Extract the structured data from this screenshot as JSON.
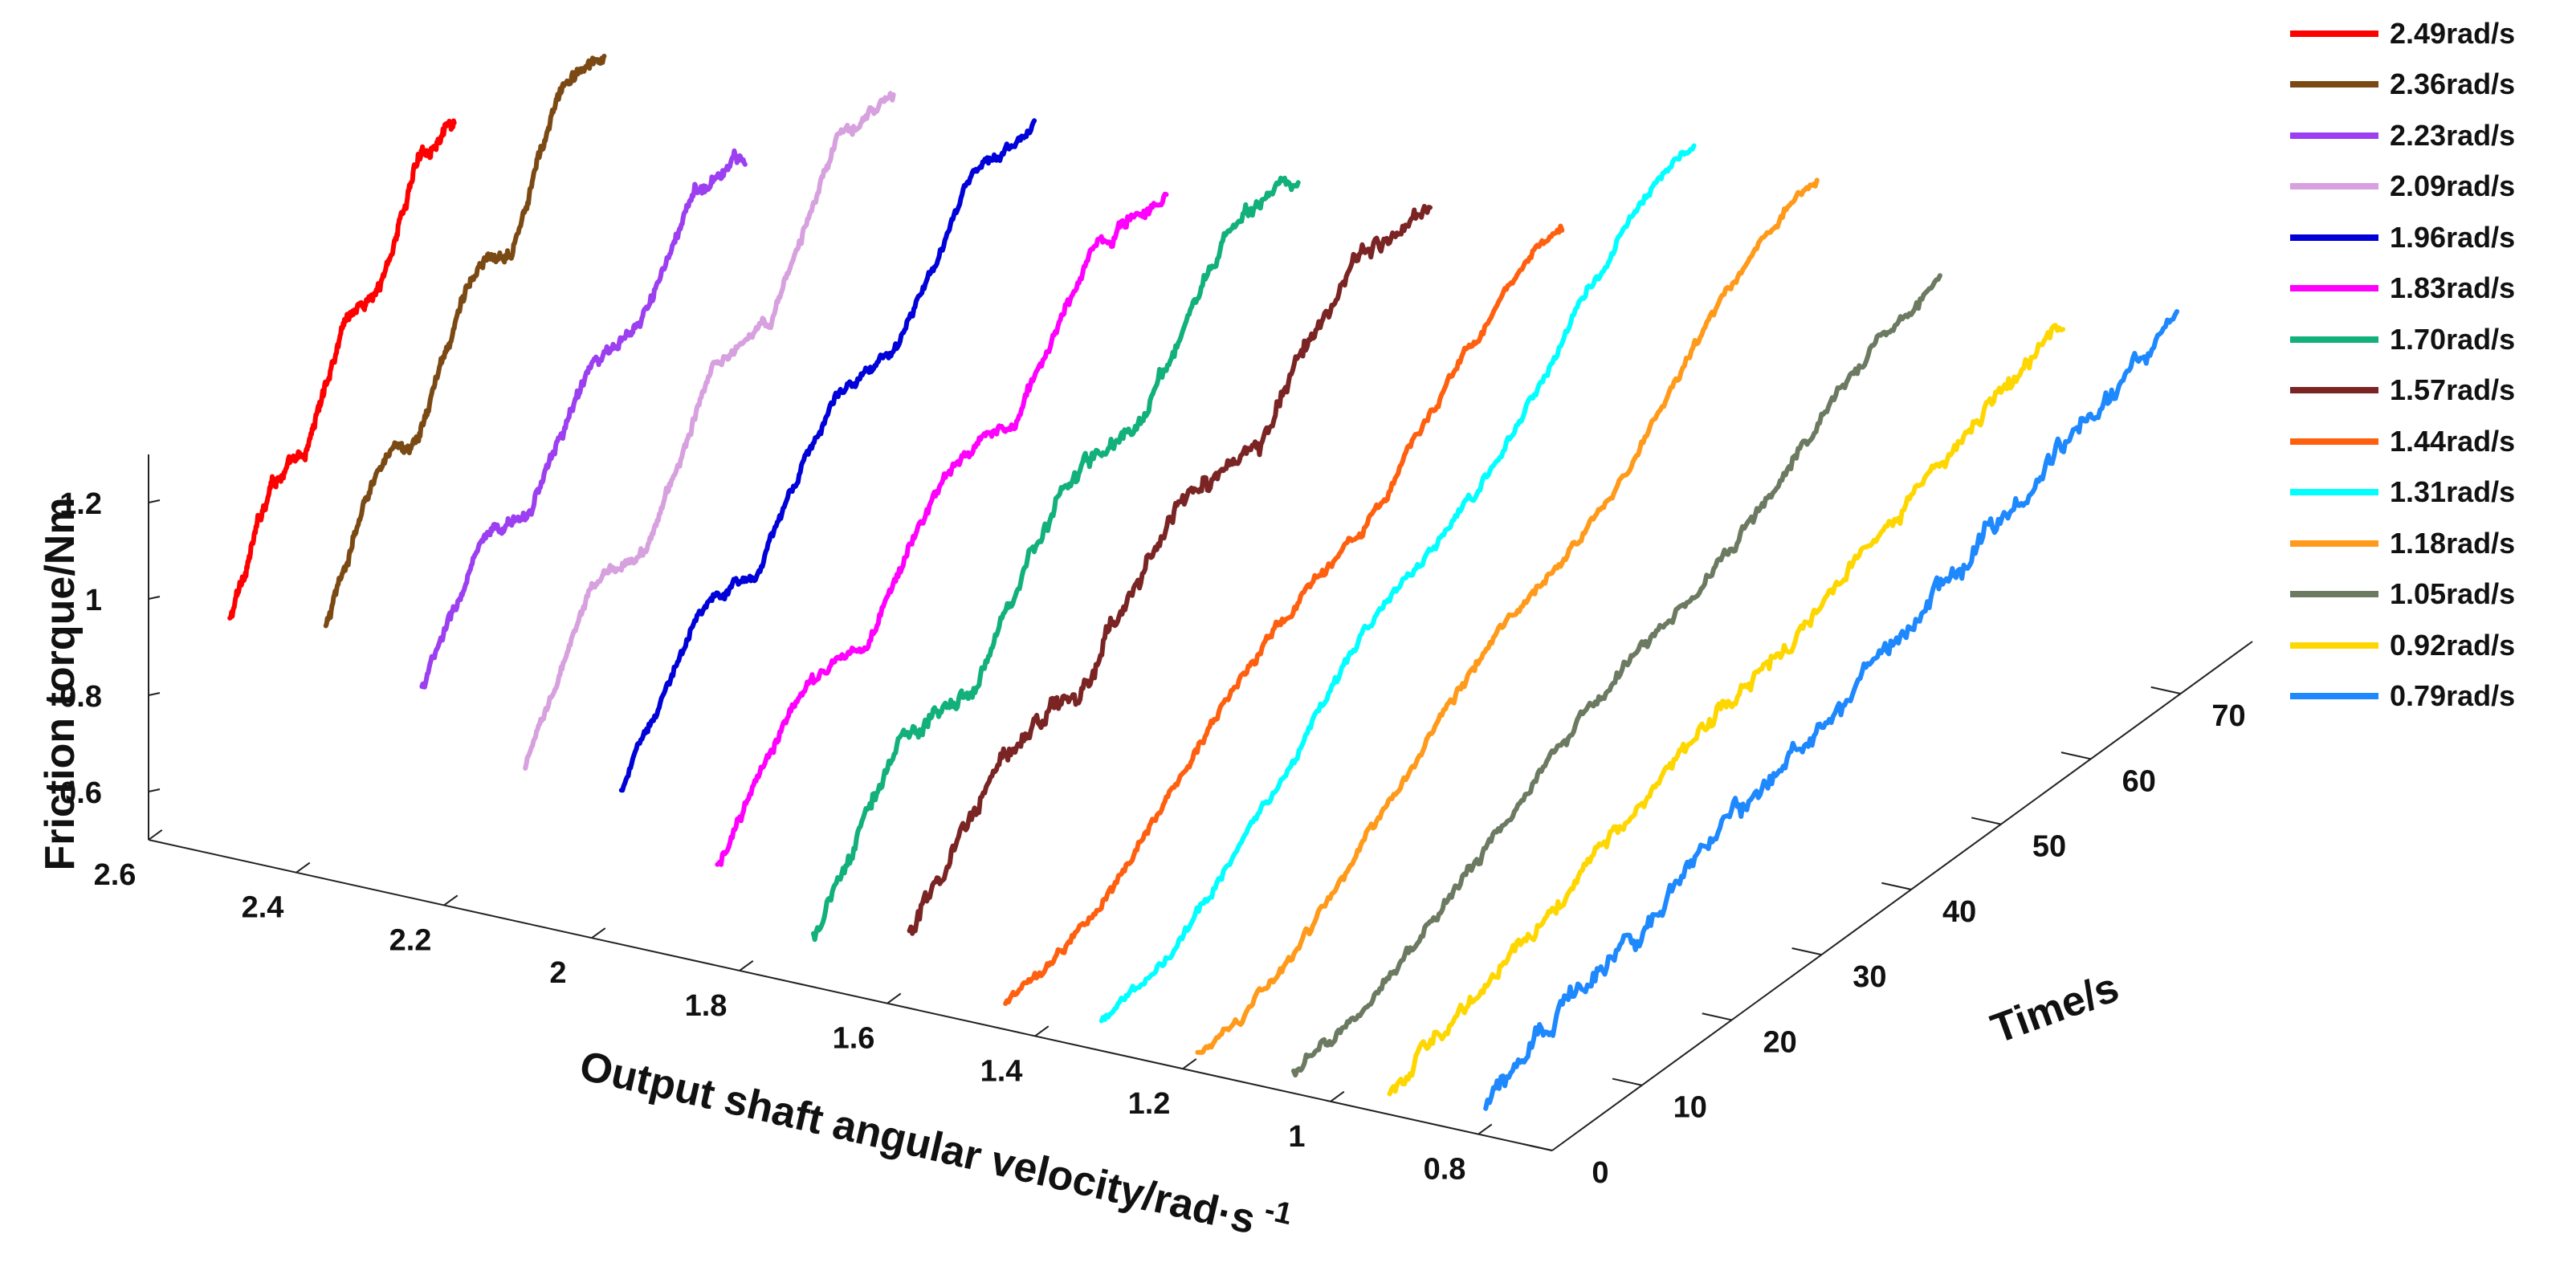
{
  "chart_data": {
    "type": "line",
    "dimension": "3d-waterfall",
    "title": "",
    "xlabel": "Output shaft angular velocity/rad·s",
    "xlabel_superscript": "-1",
    "ylabel": "Time/s",
    "zlabel": "Friction torque/Nm",
    "x_ticks": [
      "2.6",
      "2.4",
      "2.2",
      "2",
      "1.8",
      "1.6",
      "1.4",
      "1.2",
      "1",
      "0.8"
    ],
    "y_ticks": [
      "0",
      "10",
      "20",
      "30",
      "40",
      "50",
      "60",
      "70"
    ],
    "z_ticks": [
      "0.6",
      "0.8",
      "1",
      "1.2"
    ],
    "xlim": [
      0.7,
      2.6
    ],
    "ylim": [
      0,
      78
    ],
    "zlim": [
      0.5,
      1.3
    ],
    "legend_position": "top-right, outside",
    "series": [
      {
        "name": "2.49rad/s",
        "velocity": 2.49,
        "color": "#ff0000",
        "time_end": 25,
        "profile": "step",
        "z_start": 0.99,
        "z_end": 1.68,
        "noise": 0.012
      },
      {
        "name": "2.36rad/s",
        "velocity": 2.36,
        "color": "#7b4a14",
        "time_end": 31,
        "profile": "step",
        "z_start": 1.02,
        "z_end": 1.79,
        "noise": 0.012
      },
      {
        "name": "2.23rad/s",
        "velocity": 2.23,
        "color": "#9b3ff0",
        "time_end": 36,
        "profile": "step",
        "z_start": 0.94,
        "z_end": 1.56,
        "noise": 0.012
      },
      {
        "name": "2.09rad/s",
        "velocity": 2.09,
        "color": "#d7a0de",
        "time_end": 41,
        "profile": "step",
        "z_start": 0.82,
        "z_end": 1.66,
        "noise": 0.01
      },
      {
        "name": "1.96rad/s",
        "velocity": 1.96,
        "color": "#0000d8",
        "time_end": 46,
        "profile": "step",
        "z_start": 0.82,
        "z_end": 1.57,
        "noise": 0.01
      },
      {
        "name": "1.83rad/s",
        "velocity": 1.83,
        "color": "#ff00ff",
        "time_end": 50,
        "profile": "step",
        "z_start": 0.7,
        "z_end": 1.43,
        "noise": 0.012
      },
      {
        "name": "1.70rad/s",
        "velocity": 1.7,
        "color": "#12b07a",
        "time_end": 54,
        "profile": "step",
        "z_start": 0.6,
        "z_end": 1.45,
        "noise": 0.016
      },
      {
        "name": "1.57rad/s",
        "velocity": 1.57,
        "color": "#7a2424",
        "time_end": 58,
        "profile": "step",
        "z_start": 0.65,
        "z_end": 1.39,
        "noise": 0.02
      },
      {
        "name": "1.44rad/s",
        "velocity": 1.44,
        "color": "#ff6010",
        "time_end": 62,
        "profile": "smooth",
        "z_start": 0.55,
        "z_end": 1.32,
        "noise": 0.01
      },
      {
        "name": "1.31rad/s",
        "velocity": 1.31,
        "color": "#00ffff",
        "time_end": 66,
        "profile": "smooth",
        "z_start": 0.56,
        "z_end": 1.48,
        "noise": 0.01
      },
      {
        "name": "1.18rad/s",
        "velocity": 1.18,
        "color": "#ff9a1a",
        "time_end": 69,
        "profile": "smooth",
        "z_start": 0.53,
        "z_end": 1.41,
        "noise": 0.01
      },
      {
        "name": "1.05rad/s",
        "velocity": 1.05,
        "color": "#6b7a60",
        "time_end": 72,
        "profile": "smooth",
        "z_start": 0.55,
        "z_end": 1.21,
        "noise": 0.012
      },
      {
        "name": "0.92rad/s",
        "velocity": 0.92,
        "color": "#ffd700",
        "time_end": 75,
        "profile": "ramp",
        "z_start": 0.55,
        "z_end": 1.12,
        "noise": 0.016
      },
      {
        "name": "0.79rad/s",
        "velocity": 0.79,
        "color": "#1e88ff",
        "time_end": 77,
        "profile": "ramp",
        "z_start": 0.57,
        "z_end": 1.15,
        "noise": 0.022
      }
    ]
  }
}
